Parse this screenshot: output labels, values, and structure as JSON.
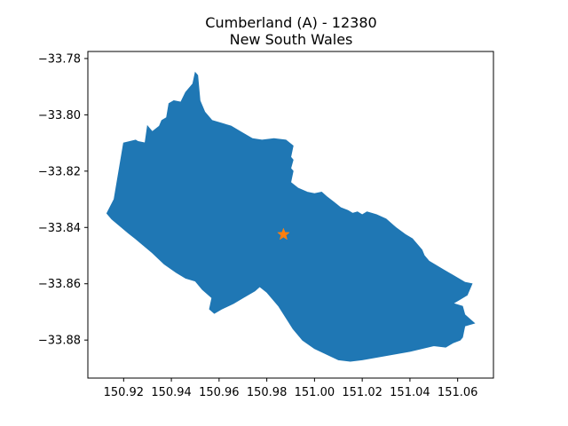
{
  "chart_data": {
    "type": "map",
    "title_line1": "Cumberland (A) - 12380",
    "title_line2": "New South Wales",
    "xlabel": "",
    "ylabel": "",
    "xlim": [
      150.905,
      151.075
    ],
    "ylim": [
      -33.8935,
      -33.7775
    ],
    "x_ticks": [
      150.92,
      150.94,
      150.96,
      150.98,
      151.0,
      151.02,
      151.04,
      151.06
    ],
    "x_tick_labels": [
      "150.92",
      "150.94",
      "150.96",
      "150.98",
      "151.00",
      "151.02",
      "151.04",
      "151.06"
    ],
    "y_ticks": [
      -33.78,
      -33.8,
      -33.82,
      -33.84,
      -33.86,
      -33.88
    ],
    "y_tick_labels": [
      "−33.78",
      "−33.80",
      "−33.82",
      "−33.84",
      "−33.86",
      "−33.88"
    ],
    "grid": false,
    "region_color": "#1f77b4",
    "marker_color": "#ff7f0e",
    "marker": {
      "x": 150.987,
      "y": -33.8425,
      "shape": "star"
    },
    "region_polygon": [
      [
        150.913,
        -33.835
      ],
      [
        150.916,
        -33.83
      ],
      [
        150.92,
        -33.81
      ],
      [
        150.925,
        -33.809
      ],
      [
        150.926,
        -33.8095
      ],
      [
        150.929,
        -33.81
      ],
      [
        150.93,
        -33.804
      ],
      [
        150.932,
        -33.806
      ],
      [
        150.935,
        -33.804
      ],
      [
        150.936,
        -33.802
      ],
      [
        150.938,
        -33.801
      ],
      [
        150.939,
        -33.796
      ],
      [
        150.941,
        -33.795
      ],
      [
        150.944,
        -33.7955
      ],
      [
        150.946,
        -33.792
      ],
      [
        150.949,
        -33.789
      ],
      [
        150.95,
        -33.785
      ],
      [
        150.951,
        -33.786
      ],
      [
        150.952,
        -33.795
      ],
      [
        150.954,
        -33.799
      ],
      [
        150.957,
        -33.802
      ],
      [
        150.961,
        -33.803
      ],
      [
        150.965,
        -33.804
      ],
      [
        150.969,
        -33.806
      ],
      [
        150.974,
        -33.8085
      ],
      [
        150.978,
        -33.809
      ],
      [
        150.983,
        -33.8085
      ],
      [
        150.988,
        -33.809
      ],
      [
        150.991,
        -33.811
      ],
      [
        150.99,
        -33.815
      ],
      [
        150.991,
        -33.816
      ],
      [
        150.99,
        -33.819
      ],
      [
        150.991,
        -33.82
      ],
      [
        150.99,
        -33.824
      ],
      [
        150.993,
        -33.826
      ],
      [
        150.997,
        -33.8275
      ],
      [
        151.0,
        -33.828
      ],
      [
        151.003,
        -33.8275
      ],
      [
        151.005,
        -33.829
      ],
      [
        151.008,
        -33.831
      ],
      [
        151.011,
        -33.833
      ],
      [
        151.014,
        -33.834
      ],
      [
        151.016,
        -33.835
      ],
      [
        151.018,
        -33.8345
      ],
      [
        151.02,
        -33.8355
      ],
      [
        151.022,
        -33.8345
      ],
      [
        151.024,
        -33.835
      ],
      [
        151.026,
        -33.8355
      ],
      [
        151.03,
        -33.837
      ],
      [
        151.034,
        -33.84
      ],
      [
        151.038,
        -33.8425
      ],
      [
        151.041,
        -33.844
      ],
      [
        151.045,
        -33.848
      ],
      [
        151.046,
        -33.85
      ],
      [
        151.048,
        -33.852
      ],
      [
        151.054,
        -33.855
      ],
      [
        151.058,
        -33.857
      ],
      [
        151.063,
        -33.8595
      ],
      [
        151.066,
        -33.86
      ],
      [
        151.064,
        -33.864
      ],
      [
        151.06,
        -33.866
      ],
      [
        151.058,
        -33.867
      ],
      [
        151.062,
        -33.868
      ],
      [
        151.063,
        -33.871
      ],
      [
        151.067,
        -33.874
      ],
      [
        151.063,
        -33.875
      ],
      [
        151.062,
        -33.879
      ],
      [
        151.061,
        -33.88
      ],
      [
        151.058,
        -33.881
      ],
      [
        151.055,
        -33.8825
      ],
      [
        151.05,
        -33.882
      ],
      [
        151.04,
        -33.884
      ],
      [
        151.03,
        -33.8855
      ],
      [
        151.02,
        -33.887
      ],
      [
        151.015,
        -33.8875
      ],
      [
        151.01,
        -33.887
      ],
      [
        151.0,
        -33.883
      ],
      [
        150.995,
        -33.88
      ],
      [
        150.991,
        -33.876
      ],
      [
        150.985,
        -33.868
      ],
      [
        150.98,
        -33.863
      ],
      [
        150.977,
        -33.861
      ],
      [
        150.975,
        -33.8625
      ],
      [
        150.97,
        -33.865
      ],
      [
        150.966,
        -33.867
      ],
      [
        150.961,
        -33.869
      ],
      [
        150.958,
        -33.8705
      ],
      [
        150.956,
        -33.869
      ],
      [
        150.957,
        -33.865
      ],
      [
        150.953,
        -33.862
      ],
      [
        150.95,
        -33.859
      ],
      [
        150.946,
        -33.858
      ],
      [
        150.942,
        -33.856
      ],
      [
        150.937,
        -33.853
      ],
      [
        150.932,
        -33.849
      ],
      [
        150.925,
        -33.844
      ],
      [
        150.922,
        -33.842
      ],
      [
        150.915,
        -33.837
      ],
      [
        150.913,
        -33.835
      ]
    ]
  }
}
